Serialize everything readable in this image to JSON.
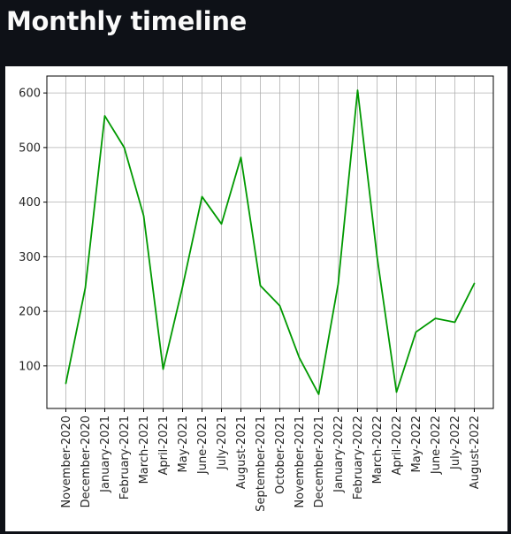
{
  "page": {
    "title": "Monthly timeline"
  },
  "chart_data": {
    "type": "line",
    "title": "",
    "xlabel": "",
    "ylabel": "",
    "categories": [
      "November-2020",
      "December-2020",
      "January-2021",
      "February-2021",
      "March-2021",
      "April-2021",
      "May-2021",
      "June-2021",
      "July-2021",
      "August-2021",
      "September-2021",
      "October-2021",
      "November-2021",
      "December-2021",
      "January-2022",
      "February-2022",
      "March-2022",
      "April-2022",
      "May-2022",
      "June-2022",
      "July-2022",
      "August-2022"
    ],
    "series": [
      {
        "color": "#009900",
        "values": [
          68,
          243,
          558,
          500,
          375,
          94,
          245,
          410,
          360,
          482,
          247,
          210,
          115,
          48,
          250,
          605,
          300,
          52,
          162,
          187,
          180,
          251
        ]
      }
    ],
    "yticks": [
      100,
      200,
      300,
      400,
      500,
      600
    ],
    "ylim": [
      22,
      631
    ],
    "grid": true,
    "legend": "none"
  }
}
